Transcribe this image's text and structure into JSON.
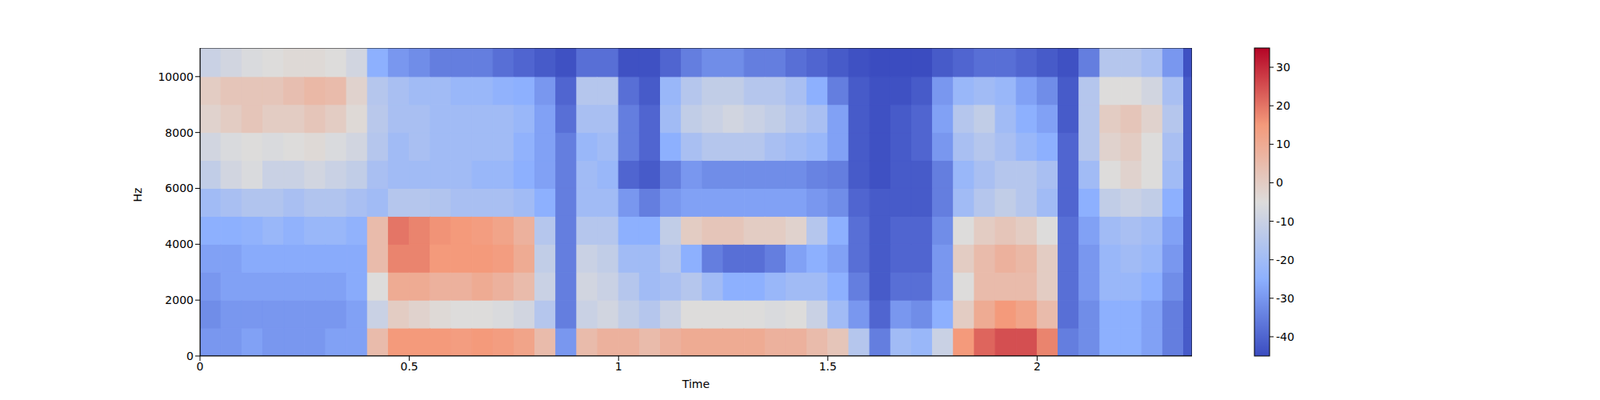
{
  "chart_data": {
    "type": "heatmap",
    "xlabel": "Time",
    "ylabel": "Hz",
    "xlim": [
      0,
      2.37
    ],
    "xticks": [
      0,
      0.5,
      1,
      1.5,
      2
    ],
    "ylim": [
      0,
      11025
    ],
    "yticks": [
      0,
      2000,
      4000,
      6000,
      8000,
      10000
    ],
    "x_edges": [
      0,
      0.05,
      0.1,
      0.15,
      0.2,
      0.25,
      0.3,
      0.35,
      0.4,
      0.45,
      0.5,
      0.55,
      0.6,
      0.65,
      0.7,
      0.75,
      0.8,
      0.85,
      0.9,
      0.95,
      1.0,
      1.05,
      1.1,
      1.15,
      1.2,
      1.25,
      1.3,
      1.35,
      1.4,
      1.45,
      1.5,
      1.55,
      1.6,
      1.65,
      1.7,
      1.75,
      1.8,
      1.85,
      1.9,
      1.95,
      2.0,
      2.05,
      2.1,
      2.15,
      2.2,
      2.25,
      2.3,
      2.35,
      2.37
    ],
    "y_edges": [
      0,
      1000,
      2000,
      3000,
      4000,
      5000,
      6000,
      7000,
      8000,
      9000,
      10000,
      11025
    ],
    "z": [
      [
        -30,
        -32,
        -30,
        -28,
        -25,
        -20,
        -12,
        -8,
        -2,
        0,
        -10
      ],
      [
        -30,
        -30,
        -28,
        -28,
        -25,
        -18,
        -8,
        -6,
        0,
        2,
        -8
      ],
      [
        -28,
        -30,
        -28,
        -26,
        -24,
        -16,
        -6,
        -5,
        2,
        2,
        -6
      ],
      [
        -30,
        -30,
        -28,
        -26,
        -22,
        -16,
        -10,
        -6,
        0,
        2,
        -5
      ],
      [
        -30,
        -30,
        -28,
        -26,
        -24,
        -18,
        -10,
        -5,
        0,
        4,
        -4
      ],
      [
        -30,
        -30,
        -28,
        -26,
        -22,
        -16,
        -8,
        -4,
        2,
        6,
        -4
      ],
      [
        -28,
        -30,
        -28,
        -26,
        -22,
        -16,
        -10,
        -6,
        0,
        5,
        -5
      ],
      [
        -28,
        -28,
        -26,
        -26,
        -24,
        -18,
        -12,
        -8,
        -4,
        -2,
        -8
      ],
      [
        5,
        -10,
        -5,
        5,
        5,
        -20,
        -18,
        -15,
        -14,
        -15,
        -25
      ],
      [
        15,
        0,
        10,
        18,
        20,
        -15,
        -20,
        -20,
        -18,
        -18,
        -30
      ],
      [
        15,
        -2,
        10,
        18,
        18,
        -15,
        -20,
        -18,
        -18,
        -20,
        -32
      ],
      [
        15,
        -4,
        8,
        15,
        16,
        -16,
        -20,
        -20,
        -20,
        -20,
        -35
      ],
      [
        14,
        -5,
        8,
        15,
        15,
        -18,
        -20,
        -20,
        -20,
        -22,
        -35
      ],
      [
        15,
        -5,
        10,
        15,
        14,
        -18,
        -22,
        -20,
        -20,
        -22,
        -35
      ],
      [
        14,
        -6,
        8,
        14,
        12,
        -18,
        -22,
        -20,
        -20,
        -24,
        -38
      ],
      [
        12,
        -8,
        5,
        10,
        8,
        -20,
        -25,
        -24,
        -22,
        -25,
        -40
      ],
      [
        5,
        -15,
        -10,
        -12,
        -15,
        -25,
        -28,
        -28,
        -28,
        -30,
        -42
      ],
      [
        -30,
        -35,
        -35,
        -35,
        -35,
        -35,
        -35,
        -35,
        -38,
        -40,
        -44
      ],
      [
        5,
        -10,
        -8,
        -10,
        -15,
        -20,
        -20,
        -22,
        -18,
        -15,
        -38
      ],
      [
        8,
        -8,
        -10,
        -12,
        -15,
        -20,
        -22,
        -20,
        -18,
        -15,
        -38
      ],
      [
        8,
        -12,
        -15,
        -20,
        -25,
        -30,
        -40,
        -35,
        -35,
        -38,
        -44
      ],
      [
        5,
        -15,
        -20,
        -20,
        -25,
        -35,
        -42,
        -40,
        -40,
        -42,
        -44
      ],
      [
        8,
        -10,
        -18,
        -15,
        -12,
        -30,
        -35,
        -25,
        -20,
        -22,
        -40
      ],
      [
        10,
        -5,
        -15,
        -25,
        0,
        -28,
        -30,
        -18,
        -12,
        -15,
        -35
      ],
      [
        10,
        -5,
        -20,
        -35,
        2,
        -28,
        -32,
        -15,
        -10,
        -12,
        -32
      ],
      [
        10,
        -5,
        -25,
        -38,
        2,
        -28,
        -32,
        -15,
        -8,
        -12,
        -32
      ],
      [
        10,
        -5,
        -25,
        -38,
        0,
        -28,
        -32,
        -15,
        -10,
        -15,
        -35
      ],
      [
        8,
        -6,
        -22,
        -35,
        0,
        -28,
        -32,
        -18,
        -12,
        -15,
        -35
      ],
      [
        8,
        -5,
        -20,
        -28,
        -2,
        -28,
        -32,
        -20,
        -15,
        -18,
        -38
      ],
      [
        5,
        -10,
        -20,
        -25,
        -15,
        -30,
        -34,
        -22,
        -18,
        -25,
        -40
      ],
      [
        2,
        -20,
        -25,
        -28,
        -25,
        -32,
        -35,
        -28,
        -28,
        -35,
        -42
      ],
      [
        -15,
        -30,
        -35,
        -38,
        -38,
        -40,
        -42,
        -42,
        -42,
        -42,
        -44
      ],
      [
        -35,
        -40,
        -42,
        -42,
        -42,
        -42,
        -44,
        -44,
        -44,
        -44,
        -45
      ],
      [
        -20,
        -30,
        -38,
        -40,
        -40,
        -42,
        -42,
        -42,
        -42,
        -44,
        -45
      ],
      [
        -22,
        -32,
        -38,
        -40,
        -40,
        -42,
        -42,
        -40,
        -40,
        -42,
        -45
      ],
      [
        -10,
        -25,
        -30,
        -30,
        -32,
        -35,
        -35,
        -30,
        -28,
        -30,
        -42
      ],
      [
        15,
        0,
        -5,
        0,
        -5,
        -20,
        -22,
        -18,
        -15,
        -22,
        -40
      ],
      [
        22,
        10,
        5,
        5,
        0,
        -15,
        -18,
        -15,
        -12,
        -20,
        -38
      ],
      [
        25,
        15,
        5,
        8,
        2,
        -12,
        -15,
        -18,
        -20,
        -22,
        -38
      ],
      [
        25,
        12,
        5,
        6,
        0,
        -15,
        -15,
        -22,
        -25,
        -28,
        -40
      ],
      [
        18,
        5,
        0,
        0,
        -5,
        -20,
        -18,
        -25,
        -28,
        -32,
        -42
      ],
      [
        -35,
        -38,
        -38,
        -38,
        -38,
        -40,
        -40,
        -40,
        -42,
        -42,
        -44
      ],
      [
        -32,
        -32,
        -30,
        -30,
        -28,
        -25,
        -20,
        -15,
        -15,
        -15,
        -35
      ],
      [
        -25,
        -25,
        -22,
        -22,
        -20,
        -12,
        -5,
        -2,
        0,
        -5,
        -15
      ],
      [
        -25,
        -25,
        -22,
        -20,
        -18,
        -10,
        -2,
        0,
        2,
        -5,
        -15
      ],
      [
        -28,
        -28,
        -25,
        -22,
        -20,
        -12,
        -5,
        -5,
        -2,
        -8,
        -18
      ],
      [
        -35,
        -35,
        -32,
        -30,
        -28,
        -25,
        -20,
        -18,
        -15,
        -18,
        -30
      ],
      [
        -42,
        -42,
        -42,
        -42,
        -42,
        -42,
        -42,
        -42,
        -42,
        -42,
        -44
      ]
    ],
    "colorbar": {
      "range": [
        -45,
        35
      ],
      "ticks": [
        -40,
        -30,
        -20,
        -10,
        0,
        10,
        20,
        30
      ]
    }
  }
}
